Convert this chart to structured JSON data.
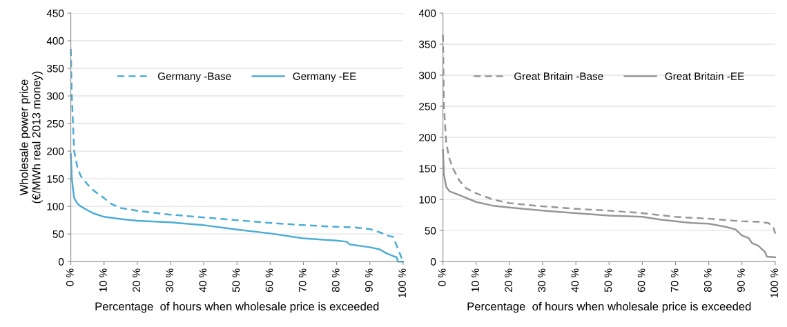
{
  "chart_data": [
    {
      "type": "line",
      "xlabel": "Percentage  of hours when wholesale price is exceeded",
      "ylabel": "Wholesale power price\n(€/MWh real 2013 money)",
      "xlim": [
        0,
        100
      ],
      "ylim": [
        0,
        450
      ],
      "yticks": [
        0,
        50,
        100,
        150,
        200,
        250,
        300,
        350,
        400,
        450
      ],
      "xticks": [
        {
          "value": 0,
          "label": "0 %"
        },
        {
          "value": 10,
          "label": "10 %"
        },
        {
          "value": 20,
          "label": "20 %"
        },
        {
          "value": 30,
          "label": "30 %"
        },
        {
          "value": 40,
          "label": "40 %"
        },
        {
          "value": 50,
          "label": "50 %"
        },
        {
          "value": 60,
          "label": "60 %"
        },
        {
          "value": 70,
          "label": "70 %"
        },
        {
          "value": 80,
          "label": "80 %"
        },
        {
          "value": 90,
          "label": "90 %"
        },
        {
          "value": 100,
          "label": "100 %"
        }
      ],
      "grid": "y",
      "legend": "top",
      "marker": "none",
      "series": [
        {
          "name": "Germany -Base",
          "color": "#4bacd6",
          "line_style": "dashed",
          "x": [
            0,
            0.3,
            1,
            2,
            3,
            5,
            7,
            10,
            12,
            15,
            20,
            30,
            40,
            50,
            60,
            70,
            80,
            85,
            90,
            93,
            96,
            97,
            98,
            99,
            100
          ],
          "values": [
            385,
            300,
            200,
            170,
            155,
            140,
            128,
            115,
            105,
            97,
            92,
            85,
            80,
            75,
            70,
            66,
            63,
            62,
            59,
            53,
            46,
            45,
            30,
            15,
            0
          ]
        },
        {
          "name": "Germany -EE",
          "color": "#4bacd6",
          "line_style": "solid",
          "x": [
            0,
            0.3,
            1,
            2,
            3,
            5,
            7,
            10,
            15,
            20,
            30,
            40,
            50,
            60,
            70,
            80,
            83,
            84,
            90,
            93,
            95,
            97,
            98,
            98.5,
            100
          ],
          "values": [
            195,
            150,
            115,
            105,
            100,
            93,
            87,
            81,
            77,
            74,
            71,
            66,
            58,
            51,
            42,
            38,
            36,
            31,
            26,
            22,
            15,
            10,
            8,
            0,
            0
          ]
        }
      ]
    },
    {
      "type": "line",
      "xlabel": "Percentage  of hours when wholesale price is exceeded",
      "xlim": [
        0,
        100
      ],
      "ylim": [
        0,
        400
      ],
      "yticks": [
        0,
        50,
        100,
        150,
        200,
        250,
        300,
        350,
        400
      ],
      "xticks": [
        {
          "value": 0,
          "label": "0 %"
        },
        {
          "value": 10,
          "label": "10 %"
        },
        {
          "value": 20,
          "label": "20 %"
        },
        {
          "value": 30,
          "label": "30 %"
        },
        {
          "value": 40,
          "label": "40 %"
        },
        {
          "value": 50,
          "label": "50 %"
        },
        {
          "value": 60,
          "label": "60 %"
        },
        {
          "value": 70,
          "label": "70 %"
        },
        {
          "value": 80,
          "label": "80 %"
        },
        {
          "value": 90,
          "label": "90 %"
        },
        {
          "value": 100,
          "label": "100 %"
        }
      ],
      "grid": "y",
      "legend": "top",
      "marker": "none",
      "series": [
        {
          "name": "Great Britain -Base",
          "color": "#969696",
          "line_style": "dashed",
          "x": [
            0,
            0.3,
            1,
            2,
            3,
            5,
            7,
            10,
            15,
            20,
            30,
            40,
            50,
            60,
            70,
            80,
            90,
            95,
            98,
            99.5,
            100
          ],
          "values": [
            365,
            250,
            190,
            165,
            150,
            130,
            118,
            110,
            100,
            94,
            89,
            85,
            82,
            78,
            72,
            69,
            65,
            64,
            62,
            55,
            45
          ]
        },
        {
          "name": "Great Britain -EE",
          "color": "#969696",
          "line_style": "solid",
          "x": [
            0,
            0.3,
            1,
            2,
            5,
            10,
            15,
            20,
            30,
            40,
            50,
            60,
            65,
            70,
            75,
            80,
            85,
            88,
            90,
            92,
            93,
            95,
            97,
            97.5,
            100
          ],
          "values": [
            180,
            140,
            120,
            113,
            107,
            96,
            90,
            87,
            82,
            78,
            74,
            72,
            68,
            65,
            62,
            61,
            56,
            52,
            42,
            38,
            30,
            25,
            15,
            8,
            7
          ]
        }
      ]
    }
  ]
}
